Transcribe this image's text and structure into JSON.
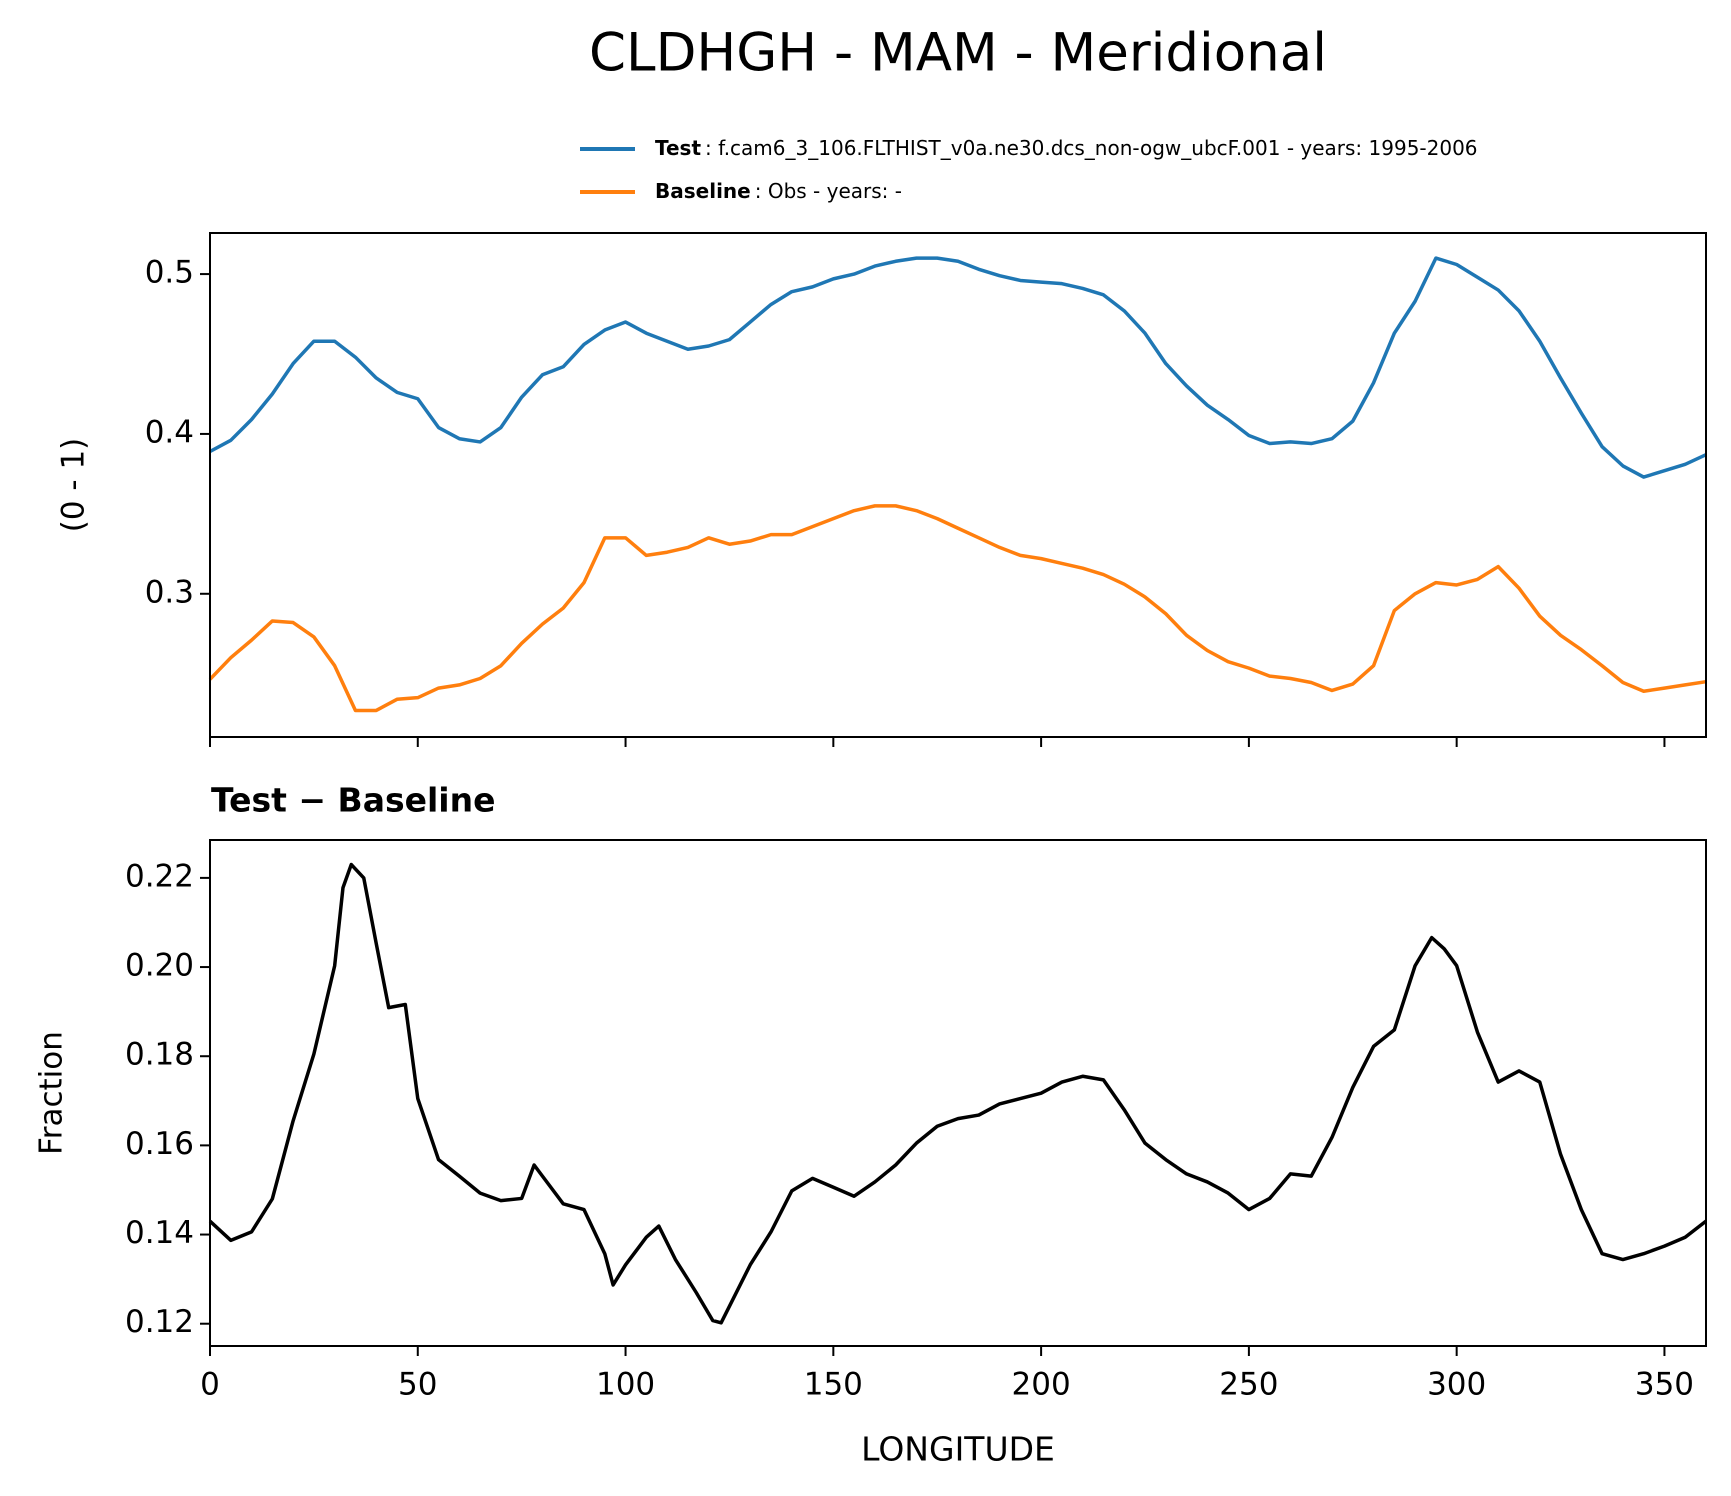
{
  "chart_data": [
    {
      "type": "line",
      "title": "CLDHGH - MAM - Meridional",
      "ylabel": "(0 - 1)",
      "x": [
        0,
        5,
        10,
        15,
        20,
        25,
        30,
        35,
        40,
        45,
        50,
        55,
        60,
        65,
        70,
        75,
        80,
        85,
        90,
        95,
        100,
        105,
        110,
        115,
        120,
        125,
        130,
        135,
        140,
        145,
        150,
        155,
        160,
        165,
        170,
        175,
        180,
        185,
        190,
        195,
        200,
        205,
        210,
        215,
        220,
        225,
        230,
        235,
        240,
        245,
        250,
        255,
        260,
        265,
        270,
        275,
        280,
        285,
        290,
        295,
        300,
        305,
        310,
        315,
        320,
        325,
        330,
        335,
        340,
        345,
        350,
        355,
        360
      ],
      "series": [
        {
          "name": "Test",
          "description": ": f.cam6_3_106.FLTHIST_v0a.ne30.dcs_non-ogw_ubcF.001 - years: 1995-2006",
          "color": "#1f77b4",
          "values": [
            0.389,
            0.396,
            0.409,
            0.425,
            0.444,
            0.458,
            0.458,
            0.448,
            0.435,
            0.426,
            0.422,
            0.404,
            0.397,
            0.395,
            0.404,
            0.423,
            0.437,
            0.442,
            0.456,
            0.465,
            0.47,
            0.463,
            0.458,
            0.453,
            0.455,
            0.459,
            0.47,
            0.481,
            0.489,
            0.492,
            0.497,
            0.5,
            0.505,
            0.508,
            0.51,
            0.51,
            0.508,
            0.503,
            0.499,
            0.496,
            0.495,
            0.494,
            0.491,
            0.487,
            0.477,
            0.463,
            0.444,
            0.43,
            0.418,
            0.409,
            0.399,
            0.394,
            0.395,
            0.394,
            0.397,
            0.408,
            0.432,
            0.463,
            0.483,
            0.51,
            0.506,
            0.498,
            0.49,
            0.477,
            0.458,
            0.435,
            0.413,
            0.392,
            0.38,
            0.373,
            0.377,
            0.381,
            0.387
          ]
        },
        {
          "name": "Baseline",
          "description": ": Obs - years: -",
          "color": "#ff7f0e",
          "values": [
            0.2465,
            0.26,
            0.271,
            0.283,
            0.282,
            0.273,
            0.255,
            0.227,
            0.227,
            0.234,
            0.235,
            0.241,
            0.243,
            0.247,
            0.255,
            0.269,
            0.281,
            0.291,
            0.307,
            0.335,
            0.335,
            0.324,
            0.326,
            0.329,
            0.335,
            0.331,
            0.333,
            0.337,
            0.337,
            0.342,
            0.347,
            0.352,
            0.355,
            0.355,
            0.352,
            0.347,
            0.341,
            0.335,
            0.329,
            0.324,
            0.322,
            0.319,
            0.316,
            0.312,
            0.306,
            0.298,
            0.2875,
            0.274,
            0.2645,
            0.2575,
            0.2535,
            0.2485,
            0.247,
            0.2445,
            0.2395,
            0.2435,
            0.255,
            0.2895,
            0.3,
            0.307,
            0.3055,
            0.309,
            0.317,
            0.3035,
            0.286,
            0.274,
            0.265,
            0.255,
            0.2445,
            0.239,
            0.241,
            0.243,
            0.245
          ]
        }
      ],
      "xlim": [
        0,
        360
      ],
      "xticks": [
        0,
        50,
        100,
        150,
        200,
        250,
        300,
        350
      ],
      "ylim": [
        0.2104,
        0.5257
      ],
      "yticks": [
        0.3,
        0.4,
        0.5
      ]
    },
    {
      "type": "line",
      "subtitle": "Test − Baseline",
      "xlabel": "LONGITUDE",
      "ylabel": "Fraction",
      "x": [
        0,
        5,
        10,
        15,
        20,
        25,
        30,
        32,
        34,
        37,
        40,
        43,
        47,
        50,
        55,
        60,
        65,
        70,
        75,
        78,
        80,
        85,
        90,
        95,
        97,
        100,
        105,
        108,
        112,
        117,
        121,
        123,
        130,
        135,
        140,
        145,
        150,
        155,
        160,
        165,
        170,
        175,
        180,
        185,
        190,
        195,
        200,
        205,
        210,
        215,
        220,
        225,
        230,
        235,
        240,
        245,
        250,
        255,
        260,
        265,
        270,
        275,
        280,
        285,
        290,
        294,
        297,
        300,
        305,
        310,
        315,
        320,
        325,
        330,
        335,
        340,
        345,
        350,
        355,
        360
      ],
      "series": [
        {
          "color": "#000000",
          "values": [
            0.143,
            0.1387,
            0.1406,
            0.148,
            0.1655,
            0.1805,
            0.2003,
            0.2178,
            0.223,
            0.22,
            0.2053,
            0.1909,
            0.1916,
            0.1705,
            0.1568,
            0.1531,
            0.1493,
            0.1476,
            0.1481,
            0.1556,
            0.1531,
            0.1469,
            0.1456,
            0.1357,
            0.1287,
            0.1332,
            0.1394,
            0.1419,
            0.1344,
            0.127,
            0.1207,
            0.1202,
            0.1332,
            0.1406,
            0.1498,
            0.1526,
            0.1506,
            0.1486,
            0.1518,
            0.1556,
            0.1605,
            0.1643,
            0.166,
            0.1668,
            0.1693,
            0.1705,
            0.1717,
            0.1742,
            0.1755,
            0.1747,
            0.168,
            0.1605,
            0.1568,
            0.1536,
            0.1518,
            0.1493,
            0.1456,
            0.1481,
            0.1536,
            0.1531,
            0.1618,
            0.173,
            0.1822,
            0.1859,
            0.2003,
            0.2066,
            0.2041,
            0.2003,
            0.1854,
            0.1742,
            0.1767,
            0.1742,
            0.158,
            0.1456,
            0.1357,
            0.1344,
            0.1357,
            0.1374,
            0.1394,
            0.143
          ]
        }
      ],
      "xlim": [
        0,
        360
      ],
      "xticks": [
        0,
        50,
        100,
        150,
        200,
        250,
        300,
        350
      ],
      "ylim": [
        0.115,
        0.2285
      ],
      "yticks": [
        {
          "value": 0.12,
          "label": "0.12"
        },
        {
          "value": 0.14,
          "label": "0.14"
        },
        {
          "value": 0.16,
          "label": "0.16"
        },
        {
          "value": 0.18,
          "label": "0.18"
        },
        {
          "value": 0.2,
          "label": "0.20"
        },
        {
          "value": 0.22,
          "label": "0.22"
        }
      ]
    }
  ]
}
